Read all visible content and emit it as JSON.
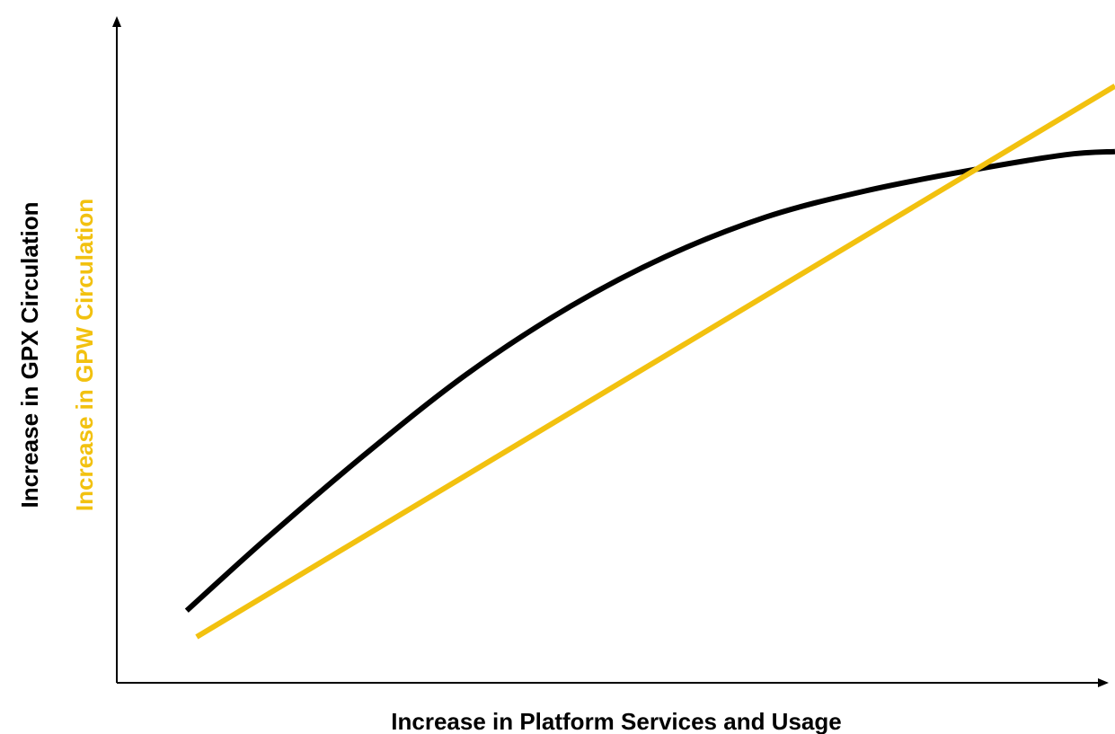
{
  "chart_data": {
    "type": "line",
    "title": "",
    "xlabel": "Increase in Platform Services and Usage",
    "ylabels": [
      {
        "text": "Increase in GPX Circulation",
        "color": "#000000"
      },
      {
        "text": "Increase in GPW Circulation",
        "color": "#f2c10f"
      }
    ],
    "xlim": [
      0,
      100
    ],
    "ylim": [
      0,
      100
    ],
    "grid": false,
    "legend": "none",
    "ticks": false,
    "series": [
      {
        "color": "#000000",
        "shape": "concave",
        "x": [
          7,
          15,
          25,
          35,
          45,
          55,
          65,
          75,
          85,
          95,
          100
        ],
        "y": [
          11,
          22,
          35,
          47,
          57,
          65,
          71,
          75,
          78,
          80.5,
          81
        ]
      },
      {
        "color": "#f2c10f",
        "shape": "linear",
        "x": [
          8,
          100
        ],
        "y": [
          7,
          91
        ]
      }
    ]
  }
}
